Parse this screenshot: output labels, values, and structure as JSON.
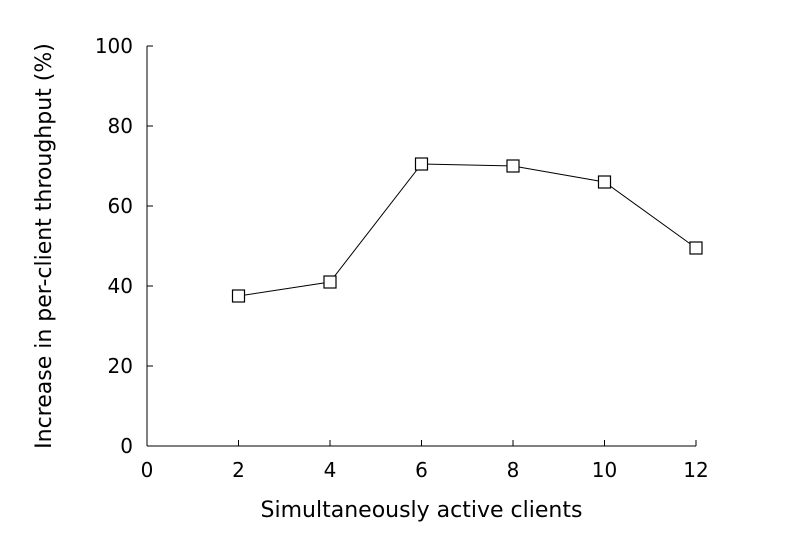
{
  "chart_data": {
    "type": "line",
    "title": "",
    "xlabel": "Simultaneously active clients",
    "ylabel": "Increase in per-client throughput (%)",
    "xlim": [
      0,
      12
    ],
    "ylim": [
      0,
      100
    ],
    "x_ticks": [
      0,
      2,
      4,
      6,
      8,
      10,
      12
    ],
    "y_ticks": [
      0,
      20,
      40,
      60,
      80,
      100
    ],
    "grid": false,
    "legend": "none",
    "marker": "square-open",
    "series": [
      {
        "x": [
          2,
          4,
          6,
          8,
          10,
          12
        ],
        "y": [
          37.5,
          41,
          70.5,
          70,
          66,
          49.5
        ]
      }
    ]
  }
}
